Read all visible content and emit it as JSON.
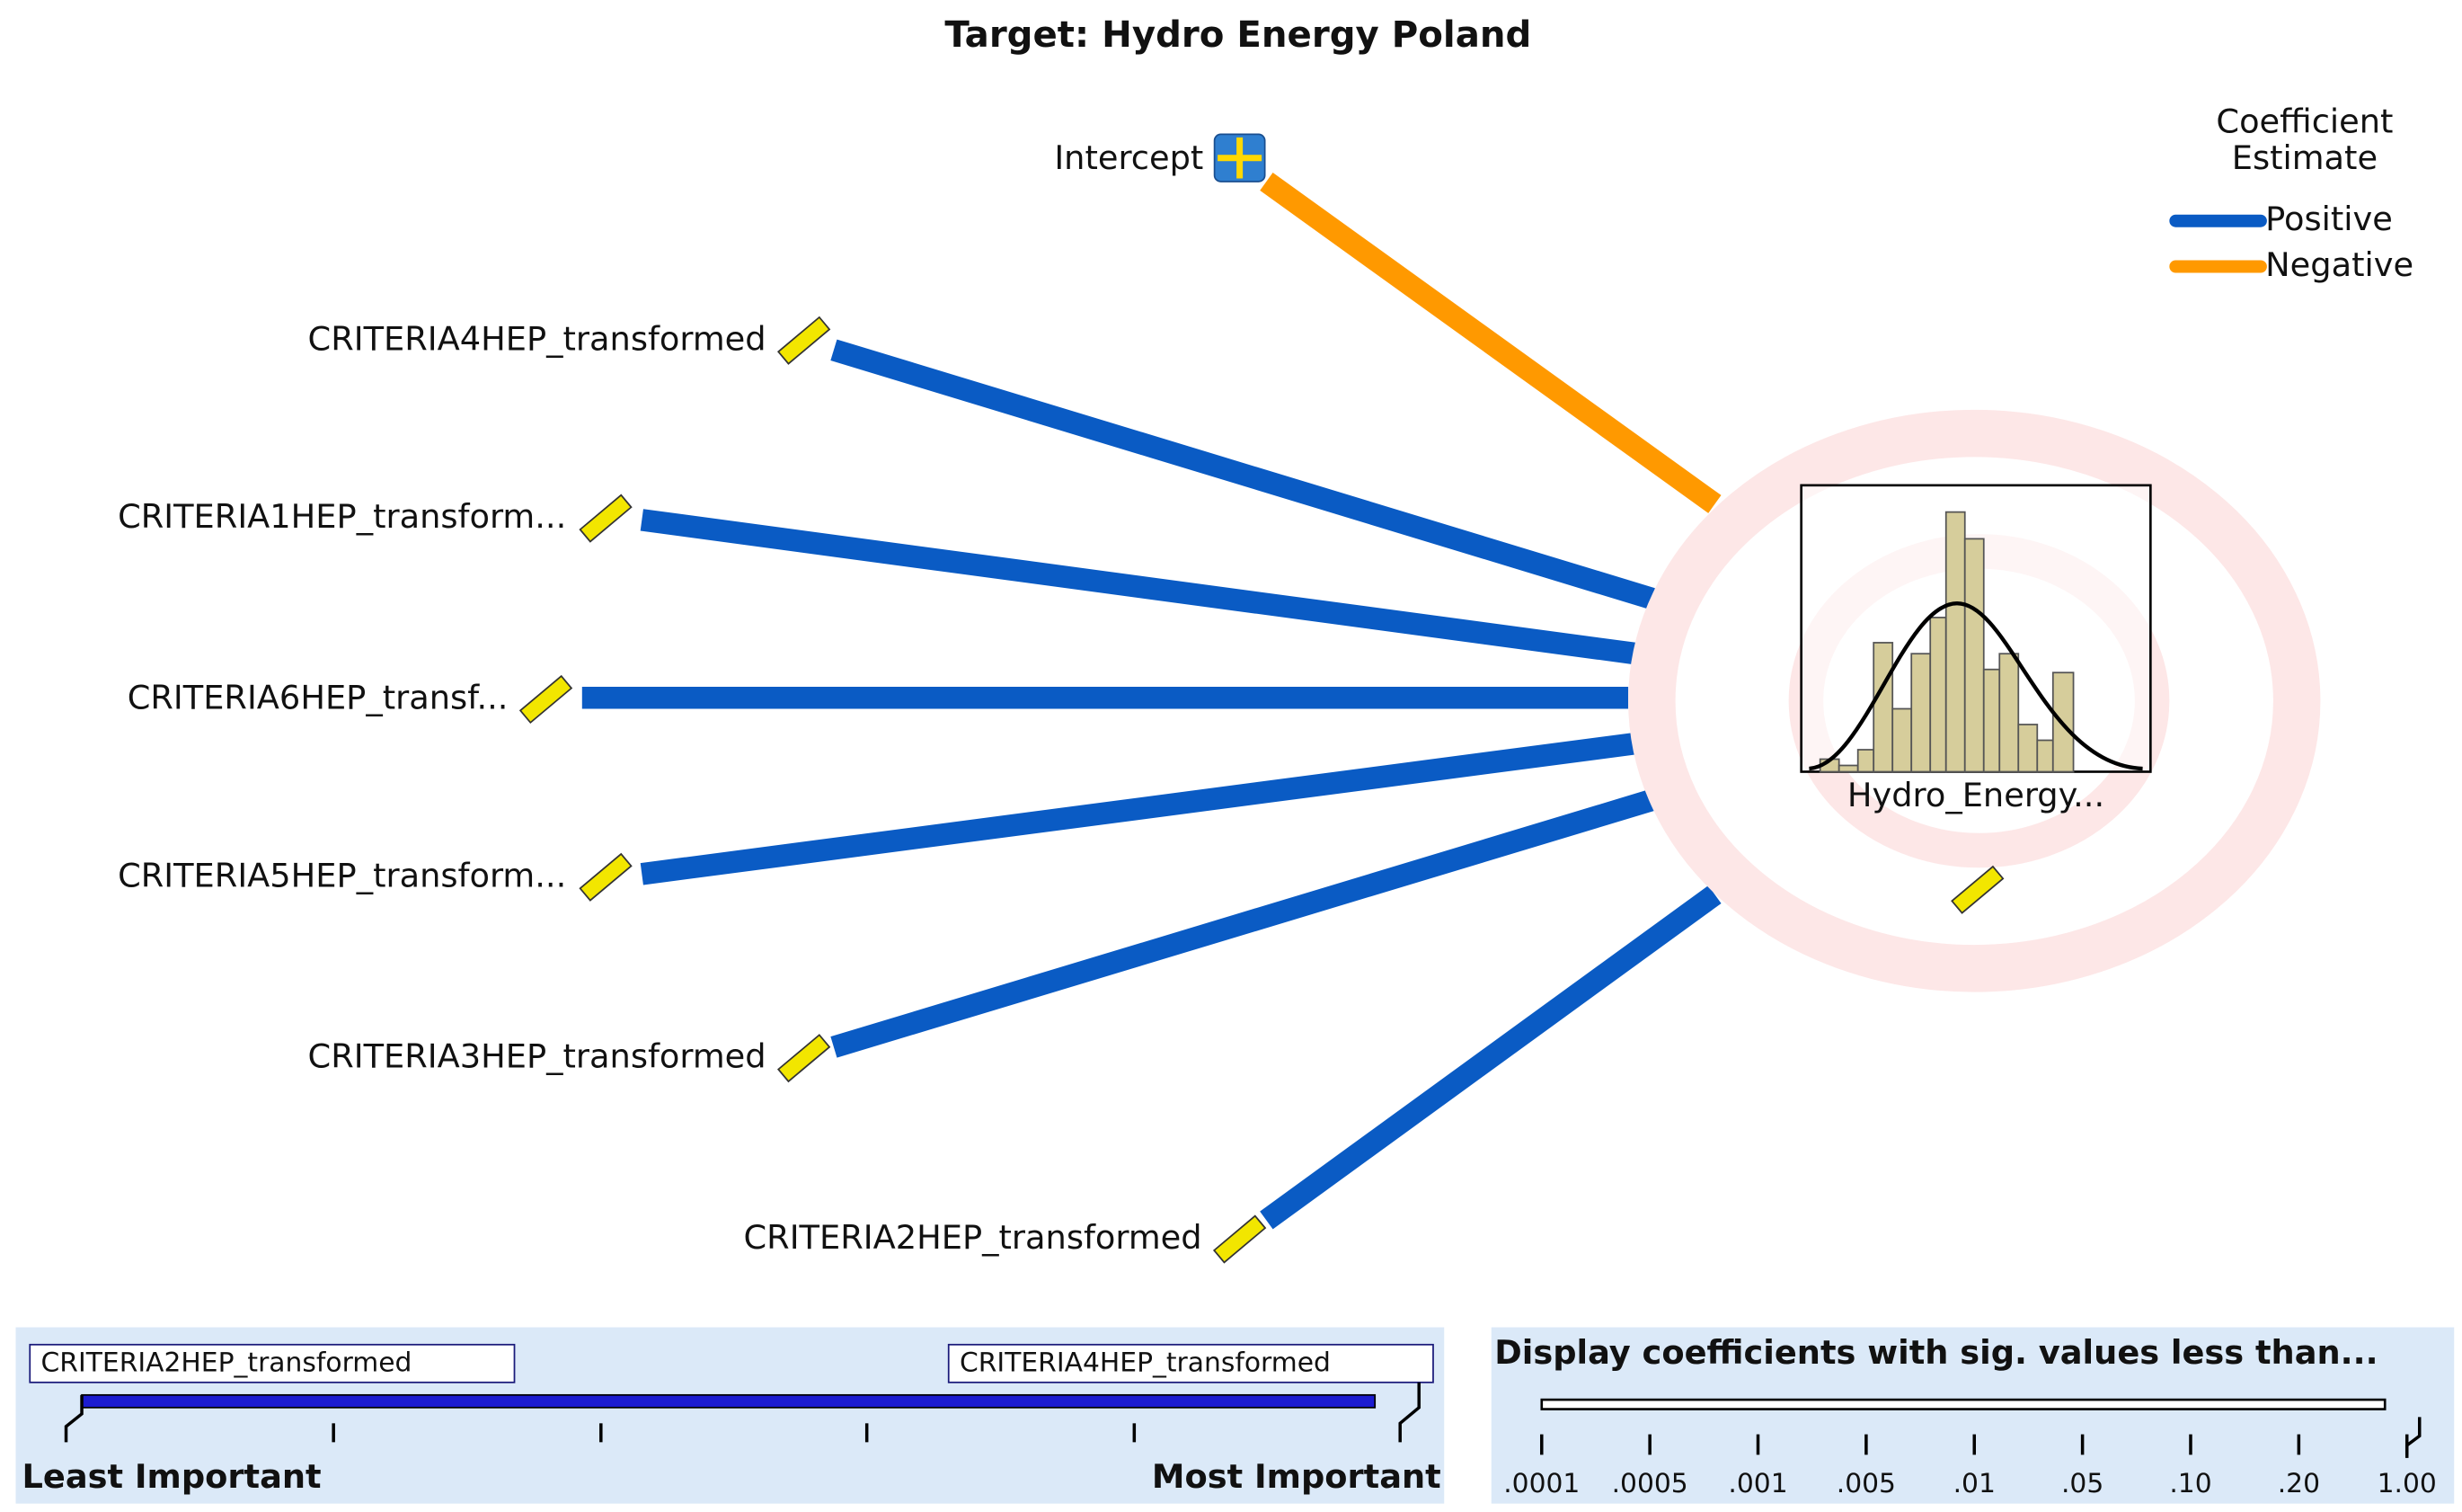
{
  "title": "Target: Hydro Energy Poland",
  "legend": {
    "title": [
      "Coefficient",
      "Estimate"
    ],
    "items": [
      {
        "name": "Positive",
        "color": "#0a5bc4"
      },
      {
        "name": "Negative",
        "color": "#ff9900"
      }
    ]
  },
  "inputs": [
    {
      "label": "Intercept",
      "sign": "Negative"
    },
    {
      "label": "CRITERIA4HEP_transformed",
      "sign": "Positive"
    },
    {
      "label": "CRITERIA1HEP_transform...",
      "sign": "Positive"
    },
    {
      "label": "CRITERIA6HEP_transf...",
      "sign": "Positive"
    },
    {
      "label": "CRITERIA5HEP_transform...",
      "sign": "Positive"
    },
    {
      "label": "CRITERIA3HEP_transformed",
      "sign": "Positive"
    },
    {
      "label": "CRITERIA2HEP_transformed",
      "sign": "Positive"
    }
  ],
  "target": {
    "label": "Hydro_Energy..."
  },
  "importance_slider": {
    "left_field": "CRITERIA2HEP_transformed",
    "right_field": "CRITERIA4HEP_transformed",
    "left_label": "Least Important",
    "right_label": "Most Important"
  },
  "significance_slider": {
    "title": "Display coefficients with sig. values less than...",
    "ticks": [
      ".0001",
      ".0005",
      ".001",
      ".005",
      ".01",
      ".05",
      ".10",
      ".20",
      "1.00"
    ]
  }
}
